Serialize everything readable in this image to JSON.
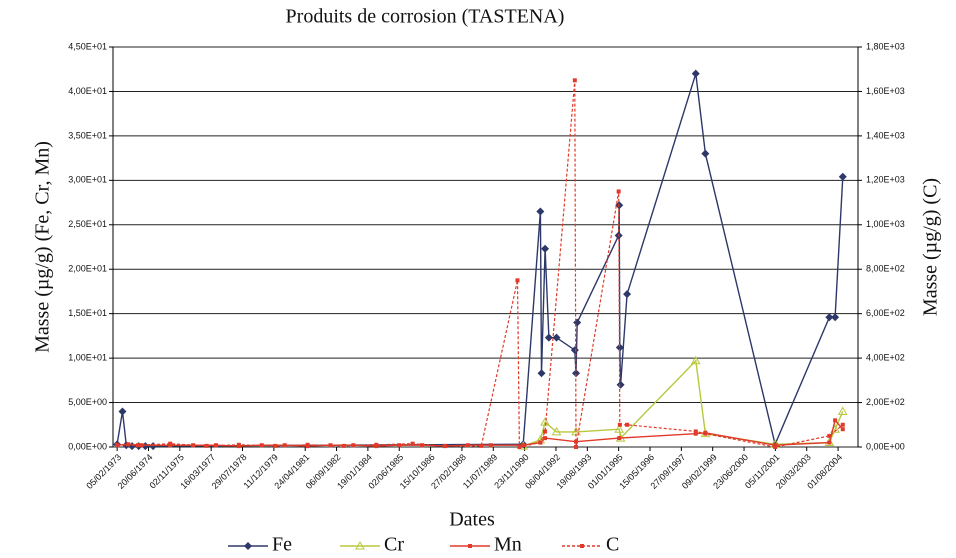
{
  "chart_data": {
    "type": "line",
    "title": "Produits de corrosion (TASTENA)",
    "xlabel": "Dates",
    "ylabel": "Masse (µg/g) (Fe, Cr, Mn)",
    "y2label": "Masse (µg/g) (C)",
    "xlim": [
      "1972-12-01",
      "2005-06-15"
    ],
    "xticks": [
      {
        "value": "1973-02-05",
        "label": "05/02/1973"
      },
      {
        "value": "1974-06-20",
        "label": "20/06/1974"
      },
      {
        "value": "1975-11-02",
        "label": "02/11/1975"
      },
      {
        "value": "1977-03-16",
        "label": "16/03/1977"
      },
      {
        "value": "1978-07-29",
        "label": "29/07/1978"
      },
      {
        "value": "1979-12-11",
        "label": "11/12/1979"
      },
      {
        "value": "1981-04-24",
        "label": "24/04/1981"
      },
      {
        "value": "1982-09-06",
        "label": "06/09/1982"
      },
      {
        "value": "1984-01-19",
        "label": "19/01/1984"
      },
      {
        "value": "1985-06-02",
        "label": "02/06/1985"
      },
      {
        "value": "1986-10-15",
        "label": "15/10/1986"
      },
      {
        "value": "1988-02-27",
        "label": "27/02/1988"
      },
      {
        "value": "1989-07-11",
        "label": "11/07/1989"
      },
      {
        "value": "1990-11-23",
        "label": "23/11/1990"
      },
      {
        "value": "1992-04-06",
        "label": "06/04/1992"
      },
      {
        "value": "1993-08-19",
        "label": "19/08/1993"
      },
      {
        "value": "1995-01-01",
        "label": "01/01/1995"
      },
      {
        "value": "1996-05-15",
        "label": "15/05/1996"
      },
      {
        "value": "1997-09-27",
        "label": "27/09/1997"
      },
      {
        "value": "1999-02-09",
        "label": "09/02/1999"
      },
      {
        "value": "2000-06-23",
        "label": "23/06/2000"
      },
      {
        "value": "2001-11-05",
        "label": "05/11/2001"
      },
      {
        "value": "2003-03-20",
        "label": "20/03/2003"
      },
      {
        "value": "2004-08-01",
        "label": "01/08/2004"
      }
    ],
    "ylim": [
      0,
      45
    ],
    "yticks": [
      {
        "value": 0,
        "label": "0,00E+00"
      },
      {
        "value": 5,
        "label": "5,00E+00"
      },
      {
        "value": 10,
        "label": "1,00E+01"
      },
      {
        "value": 15,
        "label": "1,50E+01"
      },
      {
        "value": 20,
        "label": "2,00E+01"
      },
      {
        "value": 25,
        "label": "2,50E+01"
      },
      {
        "value": 30,
        "label": "3,00E+01"
      },
      {
        "value": 35,
        "label": "3,50E+01"
      },
      {
        "value": 40,
        "label": "4,00E+01"
      },
      {
        "value": 45,
        "label": "4,50E+01"
      }
    ],
    "y2lim": [
      0,
      1800
    ],
    "y2ticks": [
      {
        "value": 0,
        "label": "0,00E+00"
      },
      {
        "value": 200,
        "label": "2,00E+02"
      },
      {
        "value": 400,
        "label": "4,00E+02"
      },
      {
        "value": 600,
        "label": "6,00E+02"
      },
      {
        "value": 800,
        "label": "8,00E+02"
      },
      {
        "value": 1000,
        "label": "1,00E+03"
      },
      {
        "value": 1200,
        "label": "1,20E+03"
      },
      {
        "value": 1400,
        "label": "1,40E+03"
      },
      {
        "value": 1600,
        "label": "1,60E+03"
      },
      {
        "value": 1800,
        "label": "1,80E+03"
      }
    ],
    "grid": true,
    "legend": "bottom",
    "series": [
      {
        "name": "Fe",
        "color": "#2e3868",
        "marker": "diamond",
        "linestyle": "solid",
        "x": [
          "1973-02-05",
          "1973-05-01",
          "1973-07-01",
          "1973-10-01",
          "1974-01-15",
          "1974-05-01",
          "1974-09-01",
          "1990-11-01",
          "1991-08-01",
          "1991-08-20",
          "1991-10-15",
          "1991-12-15",
          "1992-04-15",
          "1993-02-01",
          "1993-02-20",
          "1993-03-10",
          "1995-01-01",
          "1995-01-10",
          "1995-01-20",
          "1995-02-01",
          "1995-05-15",
          "1998-05-15",
          "1998-10-15",
          "2001-11-01",
          "2004-03-15",
          "2004-06-15",
          "2004-10-15"
        ],
        "values": [
          0.3,
          4.0,
          0.2,
          0.1,
          0.1,
          0.1,
          0.1,
          0.3,
          26.5,
          8.3,
          22.3,
          12.3,
          12.3,
          10.9,
          8.3,
          14.0,
          23.8,
          27.2,
          11.2,
          7.0,
          17.2,
          42.0,
          33.0,
          0.3,
          14.6,
          14.6,
          30.4
        ]
      },
      {
        "name": "Cr",
        "color": "#b8c83c",
        "marker": "triangle",
        "linestyle": "solid",
        "x": [
          "1990-11-01",
          "1991-08-01",
          "1991-10-15",
          "1992-04-15",
          "1993-02-20",
          "1995-01-10",
          "1995-02-01",
          "1998-05-15",
          "1998-10-15",
          "2001-11-01",
          "2004-03-15",
          "2004-06-15",
          "2004-10-15"
        ],
        "values": [
          0.1,
          0.8,
          2.8,
          1.7,
          1.7,
          2.0,
          1.0,
          9.7,
          1.5,
          0.3,
          0.5,
          2.0,
          4.0
        ]
      },
      {
        "name": "Mn",
        "color": "#e03a2a",
        "marker": "square",
        "linestyle": "solid",
        "x": [
          "1973-02-05",
          "1973-08-01",
          "1974-03-01",
          "1975-06-01",
          "1976-06-01",
          "1977-06-01",
          "1978-06-01",
          "1979-06-01",
          "1980-06-01",
          "1981-06-01",
          "1982-06-01",
          "1983-06-01",
          "1984-06-01",
          "1985-06-01",
          "1986-06-01",
          "1987-06-01",
          "1988-06-01",
          "1989-06-01",
          "1990-11-01",
          "1991-08-01",
          "1991-10-15",
          "1993-02-20",
          "1995-01-10",
          "1998-05-15",
          "1998-10-15",
          "2001-11-01",
          "2004-03-15",
          "2004-06-15",
          "2004-10-15"
        ],
        "values": [
          0.2,
          0.3,
          0.2,
          0.2,
          0.2,
          0.2,
          0.1,
          0.2,
          0.2,
          0.1,
          0.2,
          0.2,
          0.1,
          0.2,
          0.2,
          0.1,
          0.2,
          0.2,
          0.2,
          0.5,
          1.0,
          0.6,
          1.0,
          1.5,
          1.6,
          0.2,
          0.5,
          3.0,
          2.0
        ]
      },
      {
        "name": "C",
        "color": "#e03a2a",
        "marker": "square",
        "linestyle": "dashed",
        "axis": "y2",
        "x": [
          "1973-02-05",
          "1974-01-01",
          "1975-06-01",
          "1977-01-01",
          "1978-06-01",
          "1980-01-01",
          "1981-06-01",
          "1983-01-01",
          "1984-06-01",
          "1986-01-01",
          "1987-06-01",
          "1989-01-01",
          "1990-08-01",
          "1990-09-01",
          "1991-08-01",
          "1991-10-15",
          "1993-02-01",
          "1993-02-20",
          "1995-01-01",
          "1995-01-20",
          "1995-05-15",
          "1998-05-15",
          "1998-10-15",
          "2001-11-01",
          "2004-03-15",
          "2004-10-15"
        ],
        "values": [
          10,
          8,
          15,
          5,
          10,
          5,
          10,
          5,
          10,
          15,
          5,
          5,
          750,
          0,
          20,
          70,
          1650,
          0,
          1150,
          100,
          100,
          70,
          60,
          0,
          50,
          100
        ]
      }
    ]
  }
}
